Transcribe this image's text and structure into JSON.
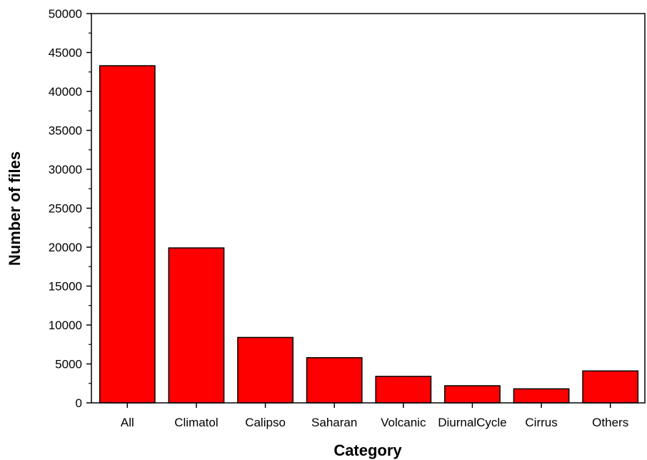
{
  "chart_data": {
    "type": "bar",
    "title": "",
    "xlabel": "Category",
    "ylabel": "Number of files",
    "categories": [
      "All",
      "Climatol",
      "Calipso",
      "Saharan",
      "Volcanic",
      "DiurnalCycle",
      "Cirrus",
      "Others"
    ],
    "values": [
      43300,
      19900,
      8400,
      5800,
      3400,
      2200,
      1800,
      4100
    ],
    "ylim": [
      0,
      50000
    ],
    "yticks": [
      0,
      5000,
      10000,
      15000,
      20000,
      25000,
      30000,
      35000,
      40000,
      45000,
      50000
    ],
    "ytick_labels": [
      "0",
      "5000",
      "10000",
      "15000",
      "20000",
      "25000",
      "30000",
      "35000",
      "40000",
      "45000",
      "50000"
    ],
    "grid": false,
    "legend": "none",
    "bar_color": "#ff0000",
    "bar_edge_color": "#000000"
  }
}
